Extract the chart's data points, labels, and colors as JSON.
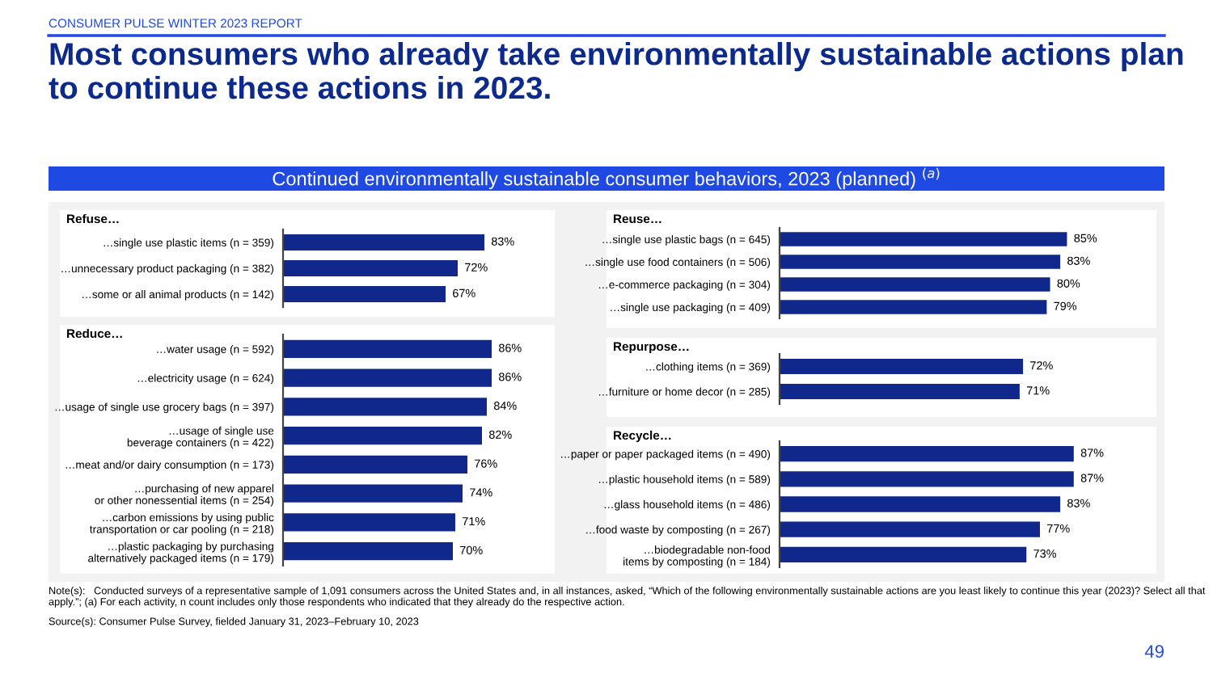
{
  "chart_data": [
    {
      "type": "other",
      "title": "Most consumers who already take environmentally sustainable actions plan to continue these actions in 2023.",
      "subtitle": "Continued environmentally sustainable consumer behaviors, 2023 (planned) $^{(a)}$",
      "annotations": [
        "CONSUMER PULSE WINTER 2023 REPORT",
        "Note(s):   Conducted surveys of a representative sample of 1,091 consumers across the United States and, in all instances, asked, “Which of the following environmentally sustainable actions are you least likely to continue this year (2023)? Select all that apply.”; (a) For each activity, n count includes only those respondents who indicated that they already do the respective action.",
        "Source(s): Consumer Pulse Survey, fielded January 31, 2023–February 10, 2023",
        "49"
      ]
    },
    {
      "type": "bar",
      "orientation": "horizontal",
      "title": "Refuse…",
      "categories": [
        "…single use plastic items (n = 359)",
        "…unnecessary product packaging (n = 382)",
        "…some or all animal products (n = 142)"
      ],
      "values": [
        83,
        72,
        67
      ],
      "value_labels": [
        "83%",
        "72%",
        "67%"
      ],
      "color": "#10288c",
      "xlim": [
        0,
        110
      ],
      "tick_labels": "y",
      "grid": false
    },
    {
      "type": "bar",
      "orientation": "horizontal",
      "title": "Reduce…",
      "categories": [
        "…water usage (n = 592)",
        "…electricity usage (n = 624)",
        "…usage of single use grocery bags (n = 397)",
        "…usage of single use\nbeverage containers (n = 422)",
        "…meat and/or dairy consumption (n = 173)",
        "…purchasing of new apparel\nor other nonessential items (n = 254)",
        "…carbon emissions by using public\ntransportation or car pooling (n = 218)",
        "…plastic packaging by purchasing\nalternatively packaged items (n = 179)"
      ],
      "values": [
        86,
        86,
        84,
        82,
        76,
        74,
        71,
        70
      ],
      "value_labels": [
        "86%",
        "86%",
        "84%",
        "82%",
        "76%",
        "74%",
        "71%",
        "70%"
      ],
      "color": "#10288c",
      "xlim": [
        0,
        110
      ],
      "tick_labels": "y",
      "grid": false
    },
    {
      "type": "bar",
      "orientation": "horizontal",
      "title": "Reuse…",
      "categories": [
        "…single use plastic bags (n = 645)",
        "…single use food containers (n = 506)",
        "…e-commerce packaging (n = 304)",
        "…single use packaging (n = 409)"
      ],
      "values": [
        85,
        83,
        80,
        79
      ],
      "value_labels": [
        "85%",
        "83%",
        "80%",
        "79%"
      ],
      "color": "#10288c",
      "xlim": [
        0,
        110
      ],
      "tick_labels": "y",
      "grid": false
    },
    {
      "type": "bar",
      "orientation": "horizontal",
      "title": "Repurpose…",
      "categories": [
        "…clothing items (n = 369)",
        "…furniture or home decor (n = 285)"
      ],
      "values": [
        72,
        71
      ],
      "value_labels": [
        "72%",
        "71%"
      ],
      "color": "#10288c",
      "xlim": [
        0,
        110
      ],
      "tick_labels": "y",
      "grid": false
    },
    {
      "type": "bar",
      "orientation": "horizontal",
      "title": "Recycle…",
      "categories": [
        "…paper or paper packaged items (n = 490)",
        "…plastic household items (n = 589)",
        "…glass household items (n = 486)",
        "…food waste by composting (n = 267)",
        "…biodegradable non-food\nitems by composting (n = 184)"
      ],
      "values": [
        87,
        87,
        83,
        77,
        73
      ],
      "value_labels": [
        "87%",
        "87%",
        "83%",
        "77%",
        "73%"
      ],
      "color": "#10288c",
      "xlim": [
        0,
        110
      ],
      "tick_labels": "y",
      "grid": false
    }
  ]
}
